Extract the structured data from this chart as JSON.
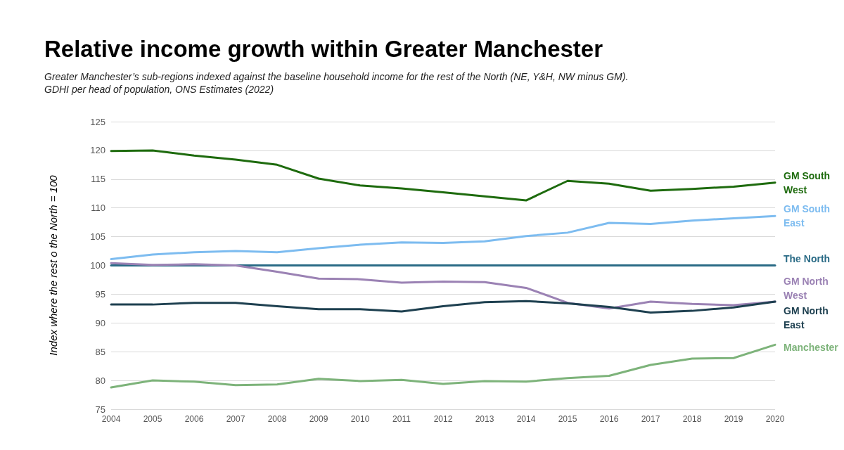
{
  "chart_data": {
    "type": "line",
    "title": "Relative income growth within Greater Manchester",
    "subtitle": "Greater Manchester’s sub-regions indexed against the baseline household income for the rest of the North (NE, Y&H, NW minus GM).\nGDHI per head of population, ONS Estimates (2022)",
    "ylabel": "Index where the rest o the North = 100",
    "categories": [
      "2004",
      "2005",
      "2006",
      "2007",
      "2008",
      "2009",
      "2010",
      "2011",
      "2012",
      "2013",
      "2014",
      "2015",
      "2016",
      "2017",
      "2018",
      "2019",
      "2020"
    ],
    "series": [
      {
        "name": "GM South West",
        "color": "#1e6b0e",
        "values": [
          119.9,
          120,
          119.1,
          118.4,
          117.5,
          115.1,
          113.9,
          113.4,
          112.7,
          112.0,
          111.3,
          114.7,
          114.2,
          113.0,
          113.3,
          113.7,
          114.4
        ]
      },
      {
        "name": "GM South East",
        "color": "#7dbcf0",
        "values": [
          101.1,
          101.9,
          102.3,
          102.5,
          102.3,
          103.0,
          103.6,
          104.0,
          103.9,
          104.2,
          105.1,
          105.7,
          107.4,
          107.2,
          107.8,
          108.2,
          108.6
        ]
      },
      {
        "name": "The North",
        "color": "#2a6b86",
        "values": [
          100,
          100,
          100,
          100,
          100,
          100,
          100,
          100,
          100,
          100,
          100,
          100,
          100,
          100,
          100,
          100,
          100
        ]
      },
      {
        "name": "GM North West",
        "color": "#9b82b4",
        "values": [
          100.4,
          100.1,
          100.2,
          100.0,
          98.9,
          97.7,
          97.6,
          97.0,
          97.2,
          97.1,
          96.1,
          93.5,
          92.5,
          93.7,
          93.3,
          93.1,
          93.7
        ]
      },
      {
        "name": "GM North East",
        "color": "#1e4050",
        "values": [
          93.2,
          93.2,
          93.5,
          93.5,
          92.9,
          92.4,
          92.4,
          92.0,
          92.9,
          93.6,
          93.8,
          93.4,
          92.8,
          91.8,
          92.1,
          92.7,
          93.7
        ]
      },
      {
        "name": "Manchester",
        "color": "#7db37a",
        "values": [
          78.8,
          80.0,
          79.8,
          79.2,
          79.3,
          80.3,
          79.9,
          80.1,
          79.4,
          79.9,
          79.8,
          80.4,
          80.8,
          82.7,
          83.8,
          83.9,
          86.2
        ]
      }
    ],
    "ylim": [
      75,
      125
    ],
    "yticks": [
      75,
      80,
      85,
      90,
      95,
      100,
      105,
      110,
      115,
      120,
      125
    ],
    "grid": "y",
    "legend": false,
    "marker": "none"
  }
}
